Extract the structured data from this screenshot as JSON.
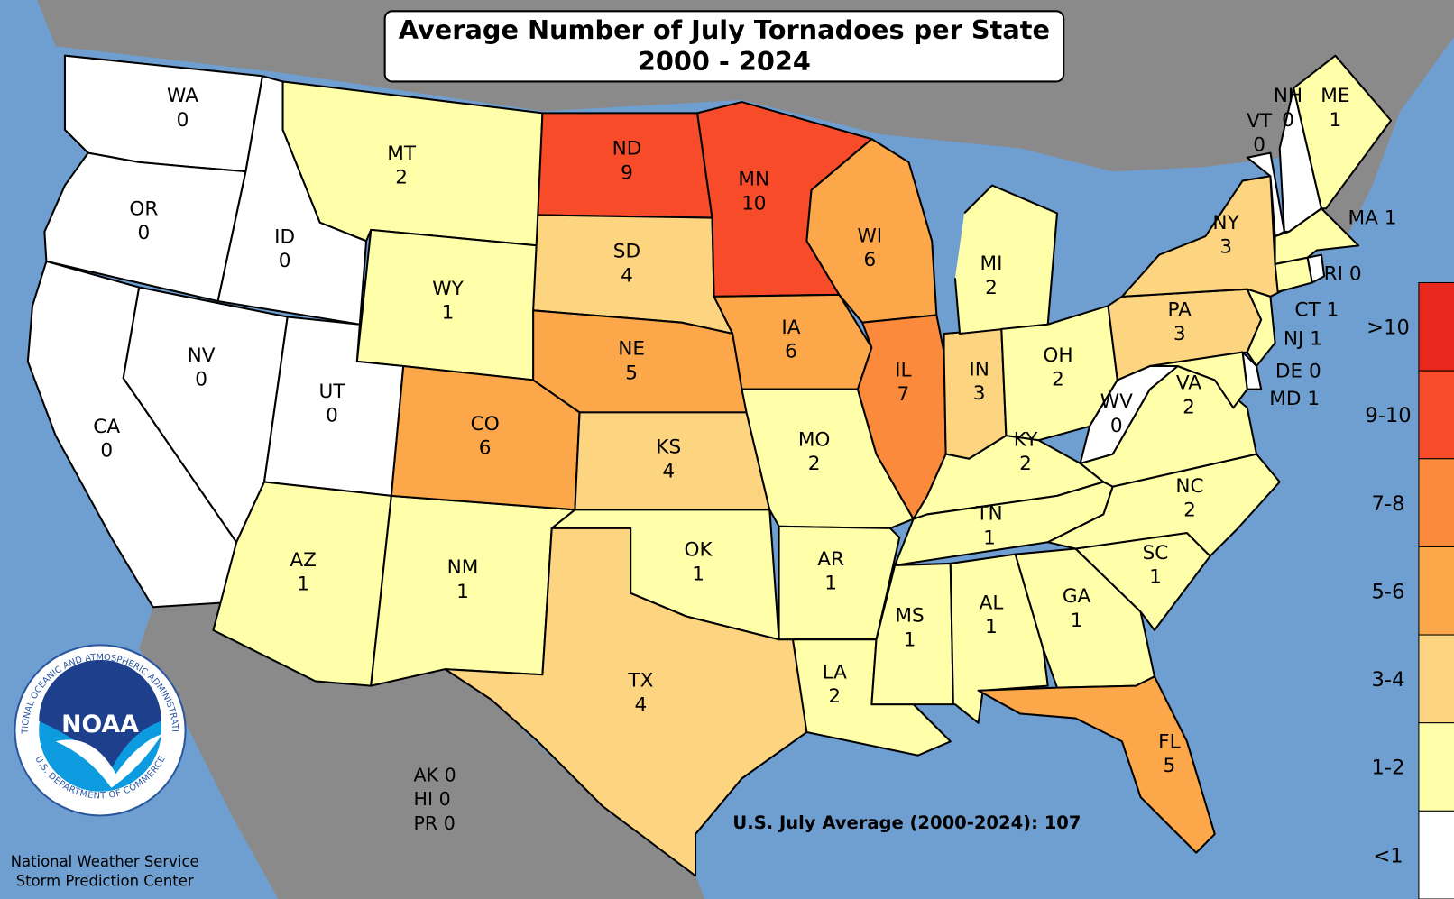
{
  "title": {
    "line1": "Average Number of July Tornadoes per State",
    "line2": "2000 - 2024"
  },
  "states": [
    {
      "abbr": "WA",
      "value": 0,
      "color": "#ffffff"
    },
    {
      "abbr": "OR",
      "value": 0,
      "color": "#ffffff"
    },
    {
      "abbr": "CA",
      "value": 0,
      "color": "#ffffff"
    },
    {
      "abbr": "NV",
      "value": 0,
      "color": "#ffffff"
    },
    {
      "abbr": "ID",
      "value": 0,
      "color": "#ffffff"
    },
    {
      "abbr": "MT",
      "value": 2,
      "color": "#ffffaa"
    },
    {
      "abbr": "WY",
      "value": 1,
      "color": "#ffffaa"
    },
    {
      "abbr": "UT",
      "value": 0,
      "color": "#ffffff"
    },
    {
      "abbr": "AZ",
      "value": 1,
      "color": "#ffffaa"
    },
    {
      "abbr": "NM",
      "value": 1,
      "color": "#ffffaa"
    },
    {
      "abbr": "CO",
      "value": 6,
      "color": "#fca84a"
    },
    {
      "abbr": "ND",
      "value": 9,
      "color": "#f74b2a"
    },
    {
      "abbr": "SD",
      "value": 4,
      "color": "#fdd580"
    },
    {
      "abbr": "NE",
      "value": 5,
      "color": "#fca84a"
    },
    {
      "abbr": "KS",
      "value": 4,
      "color": "#fdd580"
    },
    {
      "abbr": "OK",
      "value": 1,
      "color": "#ffffaa"
    },
    {
      "abbr": "TX",
      "value": 4,
      "color": "#fdd580"
    },
    {
      "abbr": "MN",
      "value": 10,
      "color": "#f74b2a"
    },
    {
      "abbr": "IA",
      "value": 6,
      "color": "#fca84a"
    },
    {
      "abbr": "MO",
      "value": 2,
      "color": "#ffffaa"
    },
    {
      "abbr": "AR",
      "value": 1,
      "color": "#ffffaa"
    },
    {
      "abbr": "LA",
      "value": 2,
      "color": "#ffffaa"
    },
    {
      "abbr": "WI",
      "value": 6,
      "color": "#fca84a"
    },
    {
      "abbr": "IL",
      "value": 7,
      "color": "#fb8a3c"
    },
    {
      "abbr": "IN",
      "value": 3,
      "color": "#fdd580"
    },
    {
      "abbr": "MI",
      "value": 2,
      "color": "#ffffaa"
    },
    {
      "abbr": "OH",
      "value": 2,
      "color": "#ffffaa"
    },
    {
      "abbr": "KY",
      "value": 2,
      "color": "#ffffaa"
    },
    {
      "abbr": "TN",
      "value": 1,
      "color": "#ffffaa"
    },
    {
      "abbr": "MS",
      "value": 1,
      "color": "#ffffaa"
    },
    {
      "abbr": "AL",
      "value": 1,
      "color": "#ffffaa"
    },
    {
      "abbr": "GA",
      "value": 1,
      "color": "#ffffaa"
    },
    {
      "abbr": "FL",
      "value": 5,
      "color": "#fca84a"
    },
    {
      "abbr": "SC",
      "value": 1,
      "color": "#ffffaa"
    },
    {
      "abbr": "NC",
      "value": 2,
      "color": "#ffffaa"
    },
    {
      "abbr": "VA",
      "value": 2,
      "color": "#ffffaa"
    },
    {
      "abbr": "WV",
      "value": 0,
      "color": "#ffffff"
    },
    {
      "abbr": "PA",
      "value": 3,
      "color": "#fdd580"
    },
    {
      "abbr": "NY",
      "value": 3,
      "color": "#fdd580"
    },
    {
      "abbr": "VT",
      "value": 0,
      "color": "#ffffff"
    },
    {
      "abbr": "NH",
      "value": 0,
      "color": "#ffffff"
    },
    {
      "abbr": "ME",
      "value": 1,
      "color": "#ffffaa"
    },
    {
      "abbr": "MA",
      "value": 1,
      "color": "#ffffaa"
    },
    {
      "abbr": "RI",
      "value": 0,
      "color": "#ffffff"
    },
    {
      "abbr": "CT",
      "value": 1,
      "color": "#ffffaa"
    },
    {
      "abbr": "NJ",
      "value": 1,
      "color": "#ffffaa"
    },
    {
      "abbr": "DE",
      "value": 0,
      "color": "#ffffff"
    },
    {
      "abbr": "MD",
      "value": 1,
      "color": "#ffffaa"
    }
  ],
  "territories": [
    {
      "abbr": "AK",
      "value": 0
    },
    {
      "abbr": "HI",
      "value": 0
    },
    {
      "abbr": "PR",
      "value": 0
    }
  ],
  "national_average": {
    "label": "U.S. July Average (2000-2024):",
    "value": 107
  },
  "legend": [
    {
      "label": ">10",
      "color": "#e8281c"
    },
    {
      "label": "9-10",
      "color": "#f74b2a"
    },
    {
      "label": "7-8",
      "color": "#fb8a3c"
    },
    {
      "label": "5-6",
      "color": "#fca84a"
    },
    {
      "label": "3-4",
      "color": "#fdd580"
    },
    {
      "label": "1-2",
      "color": "#ffffaa"
    },
    {
      "label": "<1",
      "color": "#ffffff"
    }
  ],
  "credits": [
    "National Weather Service",
    "Storm Prediction Center"
  ],
  "logo": {
    "text": "NOAA",
    "ring_top": "NATIONAL OCEANIC AND ATMOSPHERIC ADMINISTRATION",
    "ring_bottom": "U.S. DEPARTMENT OF COMMERCE"
  }
}
